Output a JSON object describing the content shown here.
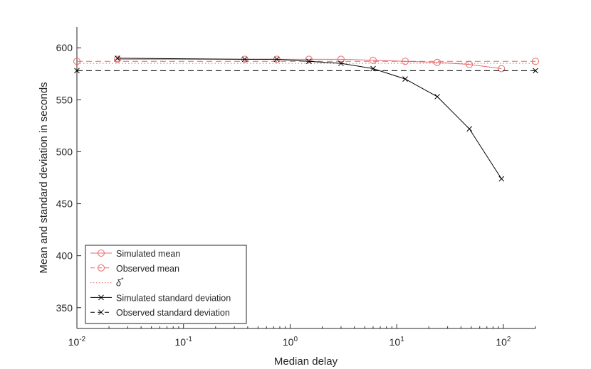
{
  "chart_data": {
    "type": "line",
    "title": "",
    "xlabel": "Median delay",
    "ylabel": "Mean and standard deviation in seconds",
    "x_scale": "log",
    "xlim": [
      0.01,
      200
    ],
    "ylim": [
      330,
      620
    ],
    "grid": false,
    "legend_position": "bottom-left",
    "x_ticks": [
      {
        "value": 0.01,
        "base": "10",
        "exp": "-2"
      },
      {
        "value": 0.1,
        "base": "10",
        "exp": "-1"
      },
      {
        "value": 1,
        "base": "10",
        "exp": "0"
      },
      {
        "value": 10,
        "base": "10",
        "exp": "1"
      },
      {
        "value": 100,
        "base": "10",
        "exp": "2"
      }
    ],
    "y_ticks": [
      {
        "value": 350,
        "label": "350"
      },
      {
        "value": 400,
        "label": "400"
      },
      {
        "value": 450,
        "label": "450"
      },
      {
        "value": 500,
        "label": "500"
      },
      {
        "value": 550,
        "label": "550"
      },
      {
        "value": 600,
        "label": "600"
      }
    ],
    "series": [
      {
        "name": "Simulated mean",
        "color": "#e8696b",
        "dash": "solid",
        "marker": "circle",
        "x": [
          0.024,
          0.375,
          0.75,
          1.5,
          3,
          6,
          12,
          24,
          48,
          96
        ],
        "y": [
          589,
          589,
          589,
          589,
          589,
          588,
          587,
          586,
          584,
          580
        ]
      },
      {
        "name": "Observed mean",
        "color": "#e8696b",
        "dash": "dashed",
        "marker": "circle",
        "x": [
          0.01,
          200
        ],
        "y": [
          587,
          587
        ]
      },
      {
        "name": "δ*",
        "color": "#e8696b",
        "dash": "dotted",
        "marker": "none",
        "x": [
          0.01,
          200
        ],
        "y": [
          585,
          585
        ]
      },
      {
        "name": "Simulated standard deviation",
        "color": "#000000",
        "dash": "solid",
        "marker": "x",
        "x": [
          0.024,
          0.375,
          0.75,
          1.5,
          3,
          6,
          12,
          24,
          48,
          96
        ],
        "y": [
          590,
          589,
          589,
          587,
          585,
          580,
          570,
          553,
          522,
          474
        ]
      },
      {
        "name": "Observed standard deviation",
        "color": "#000000",
        "dash": "dashed",
        "marker": "x",
        "x": [
          0.01,
          200
        ],
        "y": [
          578,
          578
        ]
      }
    ]
  }
}
